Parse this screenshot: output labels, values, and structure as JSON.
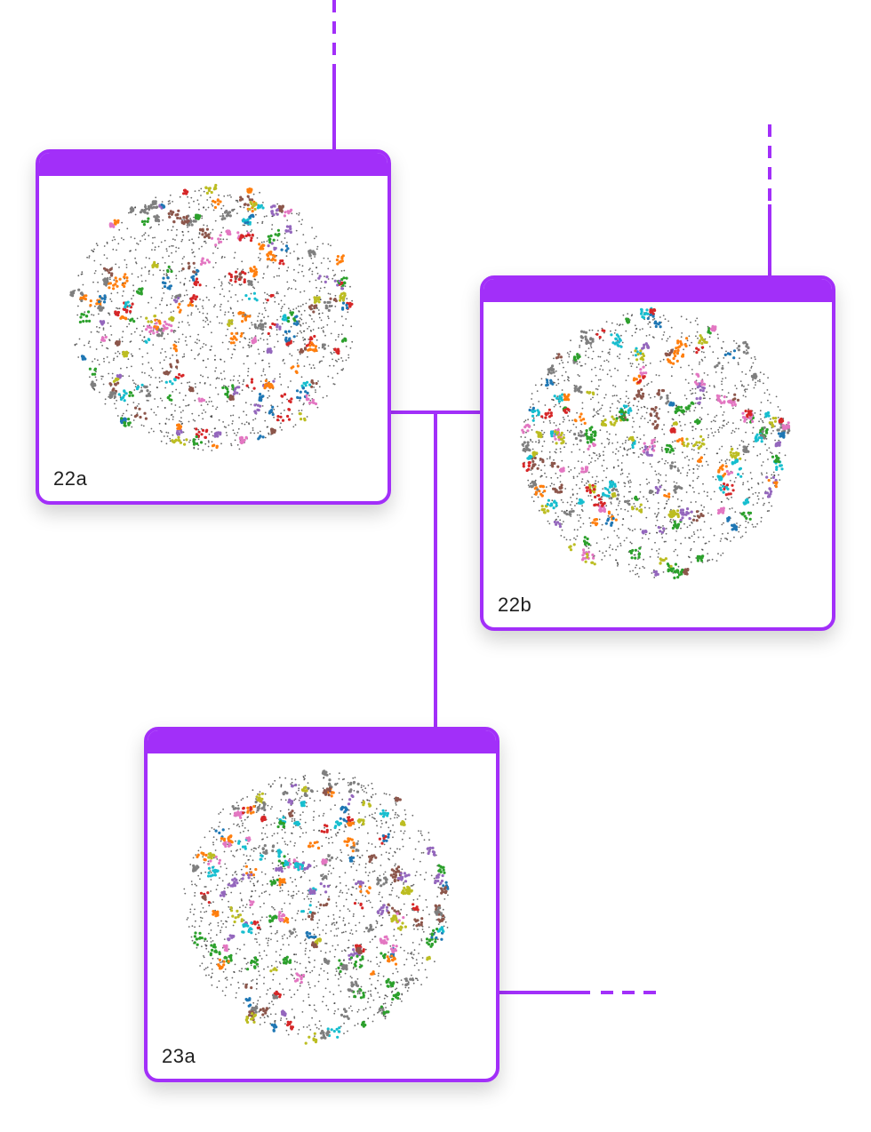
{
  "colors": {
    "accent": "#a22ff9",
    "background": "#ffffff",
    "label_text": "#1f1f1f",
    "points": [
      "#1f77b4",
      "#ff7f0e",
      "#2ca02c",
      "#d62728",
      "#9467bd",
      "#8c564b",
      "#e377c2",
      "#7f7f7f",
      "#bcbd22",
      "#17becf"
    ],
    "noise_points": "#333333"
  },
  "cards": [
    {
      "id": "22a",
      "label": "22a"
    },
    {
      "id": "22b",
      "label": "22b"
    },
    {
      "id": "23a",
      "label": "23a"
    }
  ]
}
